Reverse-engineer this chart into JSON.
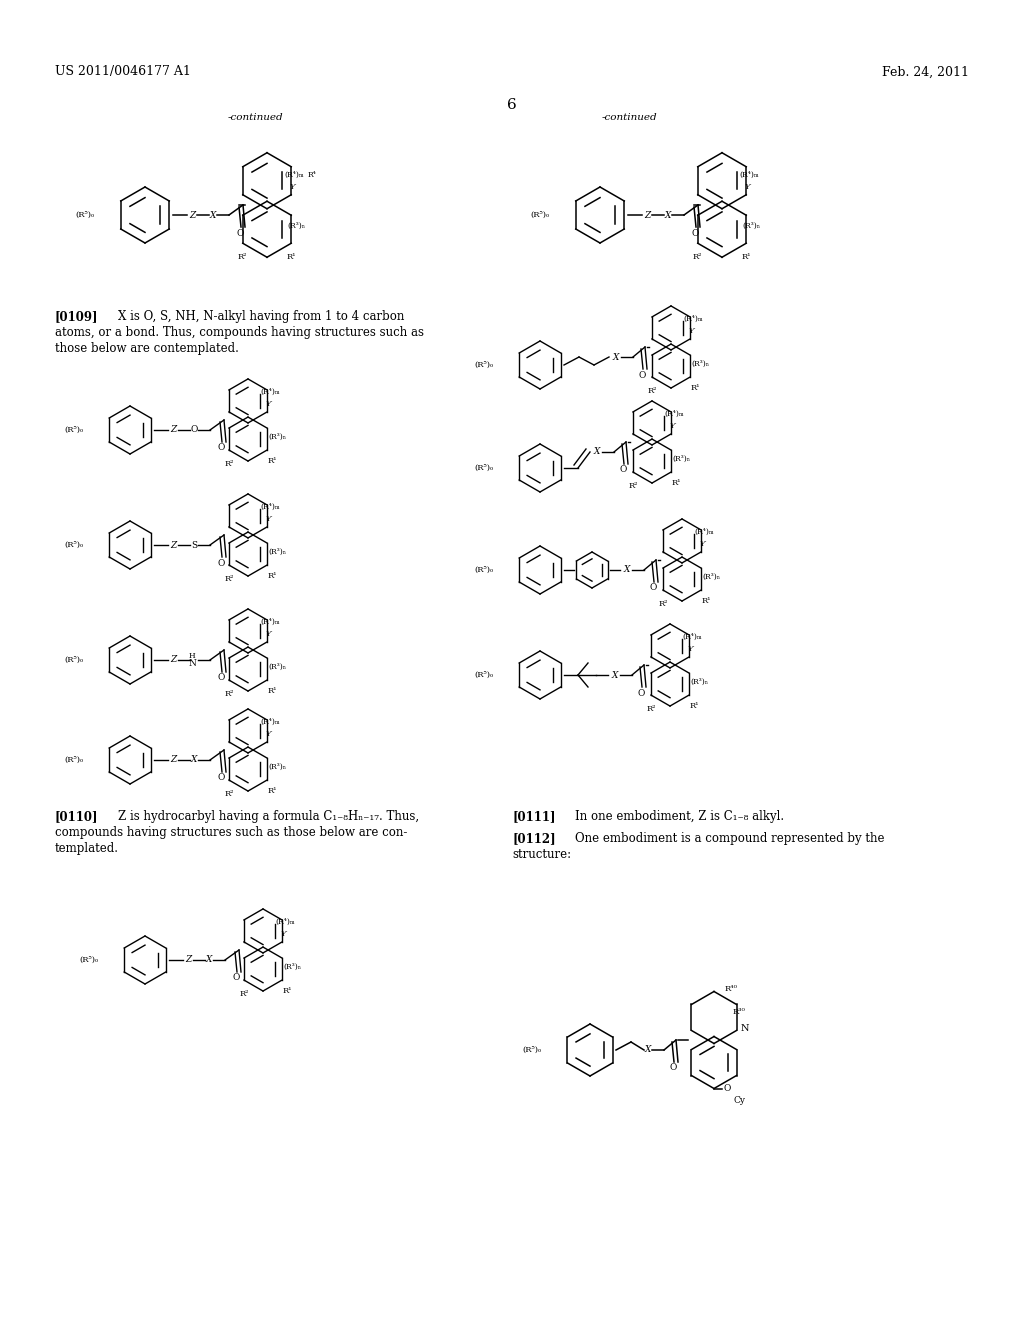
{
  "page_header_left": "US 2011/0046177 A1",
  "page_header_right": "Feb. 24, 2011",
  "page_number": "6",
  "bg": "#ffffff"
}
